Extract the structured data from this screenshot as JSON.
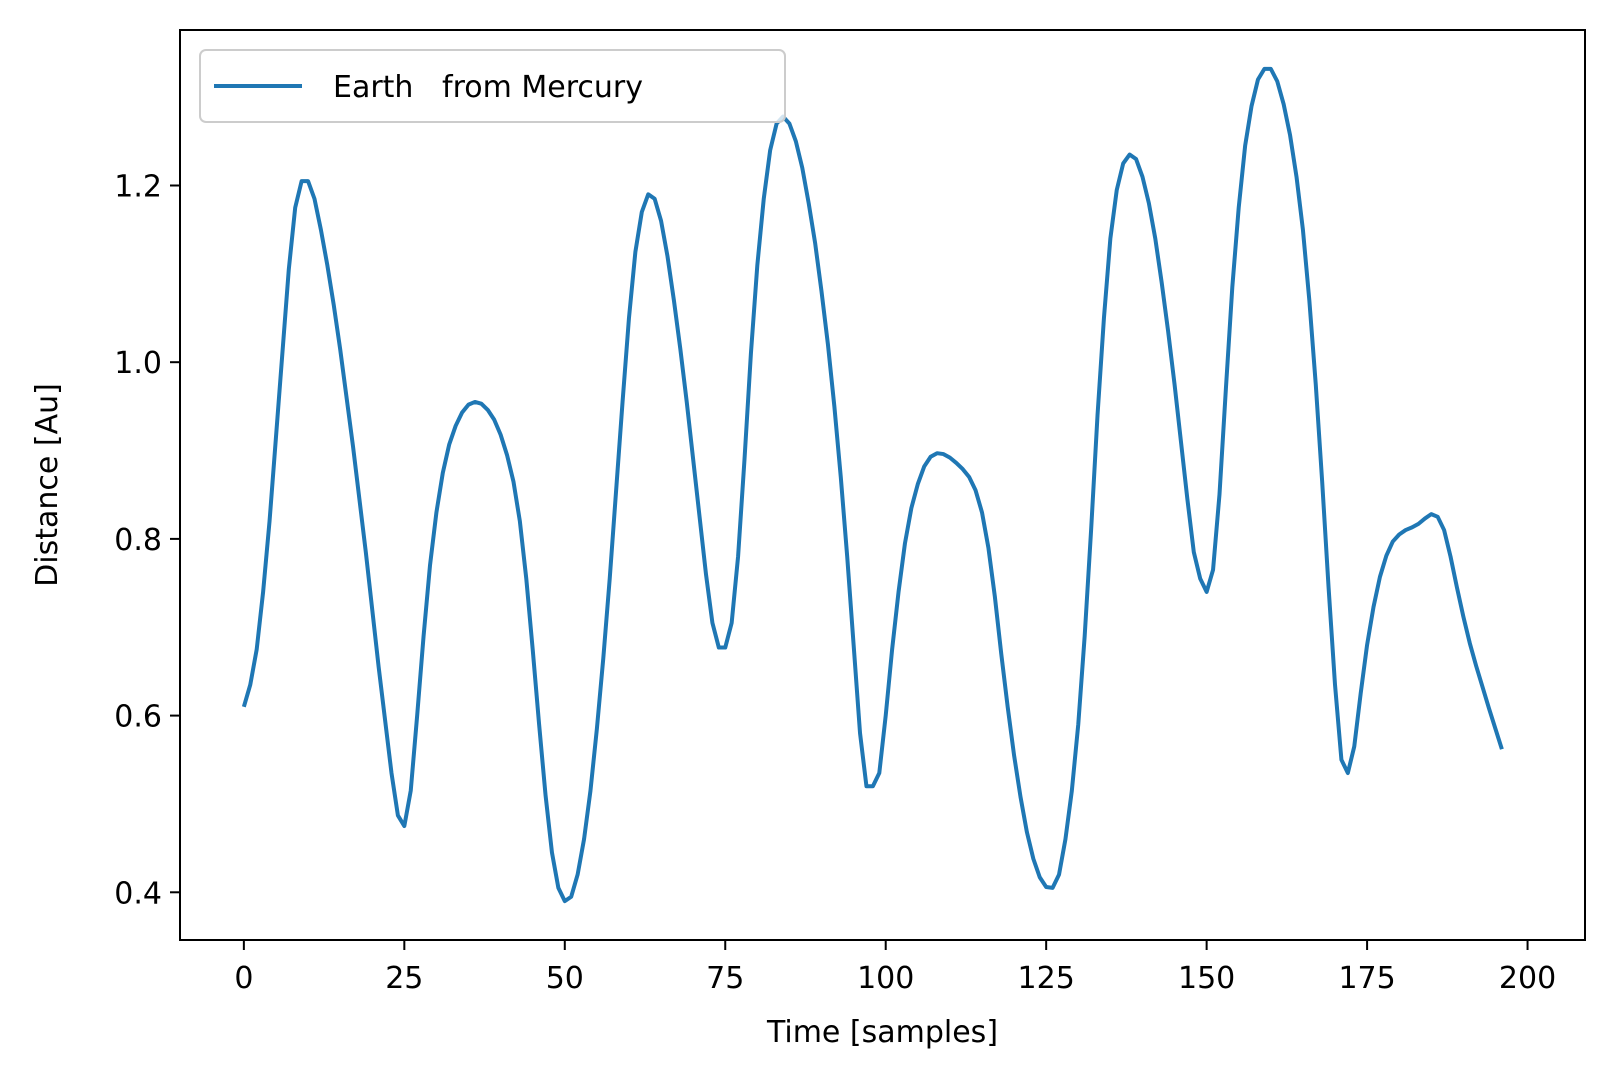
{
  "chart_data": {
    "type": "line",
    "title": "",
    "xlabel": "Time [samples]",
    "ylabel": "Distance [Au]",
    "xlim": [
      -9.95,
      208.95
    ],
    "ylim": [
      0.346,
      1.376
    ],
    "xticks": [
      0,
      25,
      50,
      75,
      100,
      125,
      150,
      175,
      200
    ],
    "yticks": [
      0.4,
      0.6,
      0.8,
      1.0,
      1.2
    ],
    "xtick_labels": [
      "0",
      "25",
      "50",
      "75",
      "100",
      "125",
      "150",
      "175",
      "200"
    ],
    "ytick_labels": [
      "0.4",
      "0.6",
      "0.8",
      "1.0",
      "1.2"
    ],
    "grid": false,
    "legend": {
      "position": "upper-left",
      "entries": [
        "Earth   from Mercury"
      ]
    },
    "series": [
      {
        "name": "Earth   from Mercury",
        "color": "#1f77b4",
        "points": [
          [
            0,
            0.61
          ],
          [
            1,
            0.635
          ],
          [
            2,
            0.675
          ],
          [
            3,
            0.74
          ],
          [
            4,
            0.82
          ],
          [
            5,
            0.915
          ],
          [
            6,
            1.01
          ],
          [
            7,
            1.105
          ],
          [
            8,
            1.175
          ],
          [
            9,
            1.205
          ],
          [
            10,
            1.205
          ],
          [
            11,
            1.185
          ],
          [
            12,
            1.15
          ],
          [
            13,
            1.11
          ],
          [
            14,
            1.065
          ],
          [
            15,
            1.015
          ],
          [
            16,
            0.96
          ],
          [
            17,
            0.905
          ],
          [
            18,
            0.845
          ],
          [
            19,
            0.785
          ],
          [
            20,
            0.72
          ],
          [
            21,
            0.655
          ],
          [
            22,
            0.595
          ],
          [
            23,
            0.535
          ],
          [
            24,
            0.487
          ],
          [
            25,
            0.475
          ],
          [
            26,
            0.515
          ],
          [
            27,
            0.6
          ],
          [
            28,
            0.69
          ],
          [
            29,
            0.77
          ],
          [
            30,
            0.83
          ],
          [
            31,
            0.875
          ],
          [
            32,
            0.907
          ],
          [
            33,
            0.928
          ],
          [
            34,
            0.943
          ],
          [
            35,
            0.952
          ],
          [
            36,
            0.955
          ],
          [
            37,
            0.953
          ],
          [
            38,
            0.946
          ],
          [
            39,
            0.935
          ],
          [
            40,
            0.918
          ],
          [
            41,
            0.895
          ],
          [
            42,
            0.865
          ],
          [
            43,
            0.82
          ],
          [
            44,
            0.755
          ],
          [
            45,
            0.675
          ],
          [
            46,
            0.59
          ],
          [
            47,
            0.51
          ],
          [
            48,
            0.445
          ],
          [
            49,
            0.405
          ],
          [
            50,
            0.39
          ],
          [
            51,
            0.395
          ],
          [
            52,
            0.42
          ],
          [
            53,
            0.46
          ],
          [
            54,
            0.515
          ],
          [
            55,
            0.585
          ],
          [
            56,
            0.665
          ],
          [
            57,
            0.755
          ],
          [
            58,
            0.855
          ],
          [
            59,
            0.955
          ],
          [
            60,
            1.05
          ],
          [
            61,
            1.125
          ],
          [
            62,
            1.17
          ],
          [
            63,
            1.19
          ],
          [
            64,
            1.185
          ],
          [
            65,
            1.16
          ],
          [
            66,
            1.12
          ],
          [
            67,
            1.07
          ],
          [
            68,
            1.015
          ],
          [
            69,
            0.955
          ],
          [
            70,
            0.89
          ],
          [
            71,
            0.825
          ],
          [
            72,
            0.76
          ],
          [
            73,
            0.705
          ],
          [
            74,
            0.677
          ],
          [
            75,
            0.677
          ],
          [
            76,
            0.705
          ],
          [
            77,
            0.78
          ],
          [
            78,
            0.89
          ],
          [
            79,
            1.01
          ],
          [
            80,
            1.11
          ],
          [
            81,
            1.185
          ],
          [
            82,
            1.24
          ],
          [
            83,
            1.27
          ],
          [
            84,
            1.278
          ],
          [
            85,
            1.27
          ],
          [
            86,
            1.25
          ],
          [
            87,
            1.22
          ],
          [
            88,
            1.18
          ],
          [
            89,
            1.135
          ],
          [
            90,
            1.08
          ],
          [
            91,
            1.02
          ],
          [
            92,
            0.95
          ],
          [
            93,
            0.87
          ],
          [
            94,
            0.78
          ],
          [
            95,
            0.68
          ],
          [
            96,
            0.58
          ],
          [
            97,
            0.52
          ],
          [
            98,
            0.52
          ],
          [
            99,
            0.535
          ],
          [
            100,
            0.6
          ],
          [
            101,
            0.675
          ],
          [
            102,
            0.74
          ],
          [
            103,
            0.795
          ],
          [
            104,
            0.835
          ],
          [
            105,
            0.862
          ],
          [
            106,
            0.882
          ],
          [
            107,
            0.893
          ],
          [
            108,
            0.897
          ],
          [
            109,
            0.896
          ],
          [
            110,
            0.892
          ],
          [
            111,
            0.886
          ],
          [
            112,
            0.879
          ],
          [
            113,
            0.87
          ],
          [
            114,
            0.855
          ],
          [
            115,
            0.83
          ],
          [
            116,
            0.79
          ],
          [
            117,
            0.735
          ],
          [
            118,
            0.67
          ],
          [
            119,
            0.61
          ],
          [
            120,
            0.555
          ],
          [
            121,
            0.508
          ],
          [
            122,
            0.468
          ],
          [
            123,
            0.438
          ],
          [
            124,
            0.417
          ],
          [
            125,
            0.406
          ],
          [
            126,
            0.405
          ],
          [
            127,
            0.42
          ],
          [
            128,
            0.46
          ],
          [
            129,
            0.515
          ],
          [
            130,
            0.59
          ],
          [
            131,
            0.69
          ],
          [
            132,
            0.81
          ],
          [
            133,
            0.94
          ],
          [
            134,
            1.05
          ],
          [
            135,
            1.14
          ],
          [
            136,
            1.195
          ],
          [
            137,
            1.225
          ],
          [
            138,
            1.235
          ],
          [
            139,
            1.23
          ],
          [
            140,
            1.21
          ],
          [
            141,
            1.18
          ],
          [
            142,
            1.14
          ],
          [
            143,
            1.09
          ],
          [
            144,
            1.035
          ],
          [
            145,
            0.975
          ],
          [
            146,
            0.91
          ],
          [
            147,
            0.845
          ],
          [
            148,
            0.785
          ],
          [
            149,
            0.755
          ],
          [
            150,
            0.74
          ],
          [
            151,
            0.765
          ],
          [
            152,
            0.85
          ],
          [
            153,
            0.97
          ],
          [
            154,
            1.085
          ],
          [
            155,
            1.175
          ],
          [
            156,
            1.245
          ],
          [
            157,
            1.29
          ],
          [
            158,
            1.32
          ],
          [
            159,
            1.332
          ],
          [
            160,
            1.332
          ],
          [
            161,
            1.318
          ],
          [
            162,
            1.292
          ],
          [
            163,
            1.257
          ],
          [
            164,
            1.21
          ],
          [
            165,
            1.15
          ],
          [
            166,
            1.07
          ],
          [
            167,
            0.975
          ],
          [
            168,
            0.865
          ],
          [
            169,
            0.745
          ],
          [
            170,
            0.635
          ],
          [
            171,
            0.55
          ],
          [
            172,
            0.535
          ],
          [
            173,
            0.565
          ],
          [
            174,
            0.625
          ],
          [
            175,
            0.68
          ],
          [
            176,
            0.723
          ],
          [
            177,
            0.757
          ],
          [
            178,
            0.781
          ],
          [
            179,
            0.797
          ],
          [
            180,
            0.805
          ],
          [
            181,
            0.81
          ],
          [
            182,
            0.813
          ],
          [
            183,
            0.817
          ],
          [
            184,
            0.823
          ],
          [
            185,
            0.828
          ],
          [
            186,
            0.825
          ],
          [
            187,
            0.81
          ],
          [
            188,
            0.78
          ],
          [
            189,
            0.745
          ],
          [
            190,
            0.712
          ],
          [
            191,
            0.682
          ],
          [
            192,
            0.656
          ],
          [
            193,
            0.632
          ],
          [
            194,
            0.608
          ],
          [
            195,
            0.585
          ],
          [
            196,
            0.562
          ]
        ]
      }
    ]
  }
}
